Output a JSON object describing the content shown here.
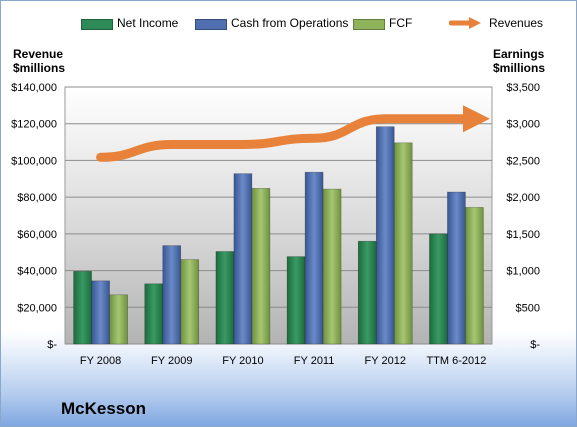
{
  "chart_data": {
    "type": "bar",
    "categories": [
      "FY 2008",
      "FY 2009",
      "FY 2010",
      "FY 2011",
      "FY 2012",
      "TTM 6-2012"
    ],
    "series": [
      {
        "name": "Net Income",
        "axis": "right",
        "values": [
          990,
          820,
          1260,
          1190,
          1400,
          1500
        ],
        "color": "#2e8b57"
      },
      {
        "name": "Cash from Operations",
        "axis": "right",
        "values": [
          860,
          1340,
          2320,
          2340,
          2960,
          2070
        ],
        "color": "#4f6fb0"
      },
      {
        "name": "FCF",
        "axis": "right",
        "values": [
          670,
          1150,
          2120,
          2110,
          2740,
          1860
        ],
        "color": "#8fb35a"
      },
      {
        "name": "Revenues",
        "axis": "left",
        "type": "line",
        "values": [
          101700,
          108700,
          108700,
          112100,
          122700,
          122700
        ],
        "color": "#e8823a"
      }
    ],
    "left_axis": {
      "title": "Revenue\n$millions",
      "ylim": [
        0,
        140000
      ],
      "ticks": [
        0,
        20000,
        40000,
        60000,
        80000,
        100000,
        120000,
        140000
      ],
      "tick_labels": [
        "$-",
        "$20,000",
        "$40,000",
        "$60,000",
        "$80,000",
        "$100,000",
        "$120,000",
        "$140,000"
      ]
    },
    "right_axis": {
      "title": "Earnings\n$millions",
      "ylim": [
        0,
        3500
      ],
      "ticks": [
        0,
        500,
        1000,
        1500,
        2000,
        2500,
        3000,
        3500
      ],
      "tick_labels": [
        "$-",
        "$500",
        "$1,000",
        "$1,500",
        "$2,000",
        "$2,500",
        "$3,000",
        "$3,500"
      ]
    },
    "grid": true,
    "legend": "top"
  },
  "company": "McKesson"
}
